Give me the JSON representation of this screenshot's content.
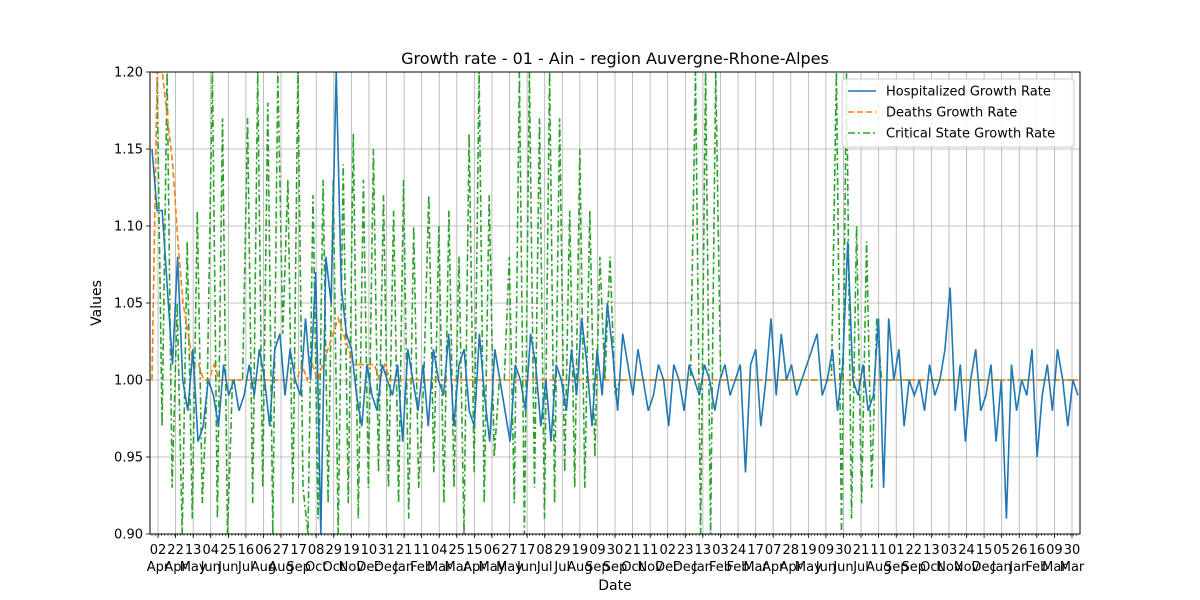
{
  "chart_data": {
    "type": "line",
    "title": "Growth rate - 01 - Ain - region Auvergne-Rhone-Alpes",
    "xlabel": "Date",
    "ylabel": "Values",
    "ylim": [
      0.9,
      1.2
    ],
    "yticks": [
      "0.90",
      "0.95",
      "1.00",
      "1.05",
      "1.10",
      "1.15",
      "1.20"
    ],
    "grid": true,
    "legend_position": "top-right",
    "xtick_days": [
      "02",
      "22",
      "13",
      "04",
      "25",
      "16",
      "06",
      "27",
      "17",
      "08",
      "29",
      "19",
      "10",
      "31",
      "21",
      "11",
      "04",
      "25",
      "15",
      "06",
      "27",
      "17",
      "08",
      "29",
      "19",
      "09",
      "30",
      "21",
      "11",
      "02",
      "23",
      "13",
      "03",
      "24",
      "17",
      "07",
      "28",
      "19",
      "09",
      "30",
      "21",
      "11",
      "01",
      "22",
      "13",
      "03",
      "24",
      "15",
      "05",
      "26",
      "16",
      "09",
      "30"
    ],
    "xtick_months": [
      "Apr",
      "Apr",
      "May",
      "Jun",
      "Jun",
      "Jul",
      "Aug",
      "Aug",
      "Sep",
      "Oct",
      "Oct",
      "Nov",
      "Dec",
      "Dec",
      "Jan",
      "Feb",
      "Mar",
      "Mar",
      "Apr",
      "May",
      "May",
      "Jun",
      "Jul",
      "Jul",
      "Aug",
      "Sep",
      "Sep",
      "Oct",
      "Nov",
      "Dec",
      "Dec",
      "Jan",
      "Feb",
      "Feb",
      "Mar",
      "Apr",
      "Apr",
      "May",
      "Jun",
      "Jun",
      "Jul",
      "Aug",
      "Sep",
      "Sep",
      "Oct",
      "Nov",
      "Nov",
      "Dec",
      "Jan",
      "Jan",
      "Feb",
      "Mar",
      "Mar"
    ],
    "series": [
      {
        "name": "Hospitalized Growth Rate",
        "color": "#1f77b4",
        "style": "solid",
        "values": [
          1.15,
          1.11,
          1.11,
          1.06,
          1.01,
          1.08,
          1.0,
          0.98,
          1.02,
          0.96,
          0.97,
          1.0,
          0.99,
          0.97,
          1.01,
          0.99,
          1.0,
          0.98,
          0.99,
          1.01,
          0.99,
          1.02,
          1.0,
          0.97,
          1.02,
          1.03,
          0.99,
          1.02,
          1.0,
          0.99,
          1.04,
          1.0,
          1.07,
          0.9,
          1.08,
          1.05,
          1.2,
          1.06,
          1.03,
          1.02,
          0.99,
          0.97,
          1.01,
          0.99,
          0.98,
          1.01,
          1.0,
          0.99,
          1.01,
          0.96,
          1.02,
          1.0,
          0.98,
          1.01,
          0.97,
          1.02,
          1.0,
          0.99,
          1.03,
          0.97,
          1.01,
          1.02,
          0.98,
          0.97,
          1.03,
          0.99,
          0.96,
          1.02,
          1.0,
          0.98,
          0.96,
          1.01,
          1.0,
          0.98,
          1.03,
          1.01,
          0.97,
          1.0,
          0.96,
          1.01,
          1.0,
          0.98,
          1.02,
          0.99,
          1.04,
          1.01,
          0.97,
          1.02,
          0.99,
          1.05,
          1.02,
          0.98,
          1.03,
          1.01,
          0.99,
          1.02,
          1.0,
          0.98,
          0.99,
          1.01,
          1.0,
          0.97,
          1.01,
          1.0,
          0.98,
          1.01,
          1.0,
          0.99,
          1.01,
          1.0,
          0.98,
          1.0,
          1.01,
          0.99,
          1.0,
          1.01,
          0.94,
          1.01,
          1.02,
          0.97,
          1.0,
          1.04,
          0.99,
          1.03,
          1.0,
          1.01,
          0.99,
          1.0,
          1.01,
          1.02,
          1.03,
          0.99,
          1.0,
          1.02,
          0.98,
          1.01,
          1.09,
          1.0,
          0.99,
          1.01,
          0.98,
          0.99,
          1.04,
          0.93,
          1.04,
          1.0,
          1.02,
          0.97,
          1.0,
          0.99,
          1.0,
          0.98,
          1.01,
          0.99,
          1.0,
          1.02,
          1.06,
          0.98,
          1.01,
          0.96,
          1.0,
          1.02,
          0.98,
          0.99,
          1.01,
          0.96,
          1.0,
          0.91,
          1.01,
          0.98,
          1.0,
          0.99,
          1.02,
          0.95,
          0.99,
          1.01,
          0.98,
          1.02,
          1.0,
          0.97,
          1.0,
          0.99
        ]
      },
      {
        "name": "Deaths Growth Rate",
        "color": "#ff7f0e",
        "style": "dashed",
        "values": [
          1.0,
          1.2,
          1.2,
          1.17,
          1.14,
          1.09,
          1.05,
          1.03,
          1.01,
          1.01,
          1.0,
          1.0,
          1.01,
          1.0,
          1.0,
          1.0,
          1.0,
          1.0,
          1.0,
          1.0,
          1.0,
          1.0,
          1.0,
          1.0,
          1.0,
          1.0,
          1.0,
          1.0,
          1.0,
          1.01,
          1.0,
          1.01,
          1.0,
          1.01,
          1.02,
          1.03,
          1.04,
          1.03,
          1.02,
          1.01,
          1.01,
          1.01,
          1.01,
          1.01,
          1.0,
          1.01,
          1.0,
          1.0,
          1.0,
          1.0,
          1.0,
          1.0,
          1.0,
          1.0,
          1.0,
          1.0,
          1.0,
          1.0,
          1.0,
          1.0,
          1.0,
          1.0,
          1.0,
          1.0,
          1.0,
          1.0,
          1.0,
          1.0,
          1.0,
          1.0,
          1.0,
          1.0,
          1.0,
          1.0,
          1.0,
          1.0,
          1.0,
          1.0,
          1.0,
          1.0,
          1.0,
          1.0,
          1.0,
          1.0,
          1.0,
          1.0,
          1.0,
          1.0,
          1.0,
          1.0,
          1.0,
          1.0,
          1.0,
          1.0,
          1.0,
          1.0,
          1.0,
          1.0,
          1.0,
          1.0,
          1.0,
          1.0,
          1.0,
          1.0,
          1.0,
          1.0,
          1.0,
          1.0,
          1.0,
          1.0,
          1.0,
          1.0,
          1.0,
          1.0,
          1.0,
          1.0,
          1.0,
          1.0,
          1.0,
          1.0,
          1.0,
          1.0,
          1.0,
          1.0,
          1.0,
          1.0,
          1.0,
          1.0,
          1.0,
          1.0,
          1.0,
          1.0,
          1.0,
          1.0,
          1.0,
          1.0,
          1.0,
          1.0,
          1.0,
          1.0,
          1.0,
          1.0,
          1.0,
          1.0,
          1.0,
          1.0,
          1.0,
          1.0,
          1.0,
          1.0,
          1.0,
          1.0,
          1.0,
          1.0,
          1.0,
          1.0,
          1.0,
          1.0,
          1.0,
          1.0,
          1.0,
          1.0,
          1.0,
          1.0,
          1.0,
          1.0,
          1.0,
          1.0,
          1.0,
          1.0,
          1.0,
          1.0,
          1.0,
          1.0,
          1.0,
          1.0,
          1.0,
          1.0,
          1.0,
          1.0
        ]
      },
      {
        "name": "Critical State Growth Rate",
        "color": "#2ca02c",
        "style": "dashdot",
        "values": [
          1.2,
          1.2,
          0.97,
          1.2,
          0.93,
          1.05,
          0.9,
          1.09,
          0.91,
          1.11,
          0.92,
          1.0,
          1.2,
          0.91,
          1.17,
          0.9,
          1.0,
          1.0,
          1.0,
          1.17,
          0.92,
          1.2,
          0.93,
          1.18,
          0.9,
          1.2,
          1.03,
          1.13,
          0.92,
          1.2,
          0.93,
          0.9,
          1.12,
          0.91,
          1.13,
          0.92,
          1.13,
          0.9,
          1.14,
          0.92,
          1.16,
          0.91,
          1.13,
          0.93,
          1.15,
          0.94,
          1.12,
          0.93,
          1.11,
          0.92,
          1.13,
          0.91,
          1.1,
          0.93,
          1.0,
          1.12,
          0.94,
          1.1,
          0.92,
          1.11,
          0.93,
          1.08,
          0.9,
          1.16,
          0.94,
          1.2,
          0.92,
          1.12,
          0.95,
          1.0,
          1.0,
          1.08,
          0.92,
          1.2,
          0.9,
          1.2,
          0.93,
          1.17,
          0.91,
          1.2,
          0.92,
          1.17,
          0.94,
          1.11,
          0.93,
          1.15,
          0.93,
          1.11,
          0.95,
          1.08,
          1.0,
          1.08,
          0.99,
          1.0,
          1.0,
          1.0,
          1.0,
          1.0,
          1.0,
          1.0,
          1.0,
          1.0,
          1.0,
          1.0,
          1.0,
          1.0,
          1.0,
          1.0,
          1.2,
          0.9,
          1.2,
          0.9,
          1.2,
          1.0,
          1.0,
          1.0,
          1.0,
          1.0,
          1.0,
          1.0,
          1.0,
          1.0,
          1.0,
          1.0,
          1.0,
          1.0,
          1.0,
          1.0,
          1.0,
          1.0,
          1.0,
          1.0,
          1.0,
          1.0,
          1.0,
          1.0,
          1.2,
          0.9,
          1.2,
          0.91,
          1.1,
          0.92,
          1.09,
          0.93,
          1.04,
          1.0,
          1.0,
          1.0,
          1.0,
          1.0,
          1.0,
          1.0,
          1.0,
          1.0,
          1.0,
          1.0,
          1.0,
          1.0,
          1.0,
          1.0,
          1.0,
          1.0,
          1.0,
          1.0,
          1.0,
          1.0,
          1.0,
          1.0,
          1.0,
          1.0,
          1.0,
          1.0,
          1.0,
          1.0,
          1.0,
          1.0,
          1.0,
          1.0,
          1.0,
          1.0,
          1.0,
          1.0,
          1.0,
          1.0,
          1.0
        ]
      }
    ]
  }
}
